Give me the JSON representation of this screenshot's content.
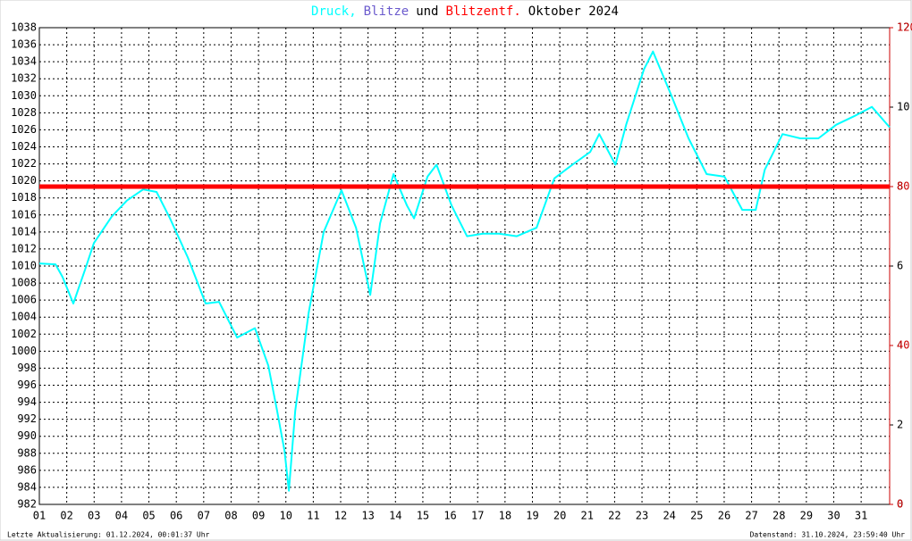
{
  "chart_data": {
    "type": "line",
    "title": [
      {
        "text": "Druck,",
        "color": "#00ffff"
      },
      {
        "text": "Blitze",
        "color": "#6a5acd"
      },
      {
        "text": "und",
        "color": "#000000"
      },
      {
        "text": "Blitzentf.",
        "color": "#ff0000"
      },
      {
        "text": "Oktober 2024",
        "color": "#000000"
      }
    ],
    "footer_left": "Letzte Aktualisierung: 01.12.2024, 00:01:37 Uhr",
    "footer_right": "Datenstand: 31.10.2024, 23:59:40 Uhr",
    "xlim": [
      1,
      32.04
    ],
    "xticks": [
      {
        "value": 1,
        "label": "01"
      },
      {
        "value": 2,
        "label": "02"
      },
      {
        "value": 3,
        "label": "03"
      },
      {
        "value": 4,
        "label": "04"
      },
      {
        "value": 5,
        "label": "05"
      },
      {
        "value": 6,
        "label": "06"
      },
      {
        "value": 7,
        "label": "07"
      },
      {
        "value": 8,
        "label": "08"
      },
      {
        "value": 9,
        "label": "09"
      },
      10,
      11,
      12,
      13,
      14,
      15,
      16,
      17,
      18,
      19,
      20,
      21,
      22,
      23,
      24,
      25,
      26,
      27,
      28,
      29,
      30,
      31
    ],
    "ylim": [
      982,
      1038
    ],
    "yticks": [
      982,
      984,
      986,
      988,
      990,
      992,
      994,
      996,
      998,
      1000,
      1002,
      1004,
      1006,
      1008,
      1010,
      1012,
      1014,
      1016,
      1018,
      1020,
      1022,
      1024,
      1026,
      1028,
      1030,
      1032,
      1034,
      1036,
      1038
    ],
    "y2lim": [
      0,
      12
    ],
    "y2ticks": [
      0,
      2,
      4,
      6,
      8,
      10,
      12
    ],
    "y2color": "#000000",
    "y3lim": [
      0,
      120
    ],
    "y3ticks": [
      0,
      40,
      80,
      120
    ],
    "y3color": "#cc0000",
    "grid": true,
    "series": [
      {
        "name": "Druck",
        "color": "#00ffff",
        "axis": "y",
        "x": [
          1.0,
          1.59,
          1.85,
          2.24,
          2.67,
          2.99,
          3.64,
          4.2,
          4.79,
          5.28,
          5.77,
          6.42,
          7.07,
          7.56,
          8.22,
          8.87,
          9.36,
          9.68,
          9.95,
          10.11,
          10.34,
          10.83,
          11.38,
          12.03,
          12.56,
          13.08,
          13.44,
          13.93,
          14.42,
          14.68,
          15.17,
          15.5,
          16.05,
          16.61,
          17.19,
          17.78,
          18.43,
          19.15,
          19.8,
          20.46,
          21.11,
          21.44,
          22.03,
          22.42,
          23.07,
          23.4,
          24.05,
          24.7,
          25.36,
          26.01,
          26.66,
          27.15,
          27.48,
          28.13,
          28.78,
          29.44,
          30.09,
          30.74,
          31.39,
          32.04
        ],
        "values": [
          1010.3,
          1010.2,
          1008.7,
          1005.6,
          1009.6,
          1012.7,
          1015.8,
          1017.7,
          1019.0,
          1018.7,
          1015.6,
          1011.0,
          1005.6,
          1005.8,
          1001.6,
          1002.7,
          998.3,
          993.0,
          988.3,
          983.6,
          993.0,
          1004.5,
          1014.0,
          1018.9,
          1014.5,
          1006.6,
          1015.0,
          1020.8,
          1017.1,
          1015.6,
          1020.5,
          1021.9,
          1017.1,
          1013.5,
          1013.8,
          1013.8,
          1013.5,
          1014.5,
          1020.3,
          1021.9,
          1023.4,
          1025.5,
          1021.9,
          1026.6,
          1033.1,
          1035.2,
          1030.2,
          1025.0,
          1020.8,
          1020.5,
          1016.6,
          1016.6,
          1021.3,
          1025.5,
          1025.0,
          1025.0,
          1026.6,
          1027.6,
          1028.7,
          1026.3
        ]
      },
      {
        "name": "Blitzentf.",
        "color": "#ff0000",
        "axis": "y3",
        "x": [
          1,
          32.04
        ],
        "values": [
          80,
          80
        ]
      }
    ]
  }
}
